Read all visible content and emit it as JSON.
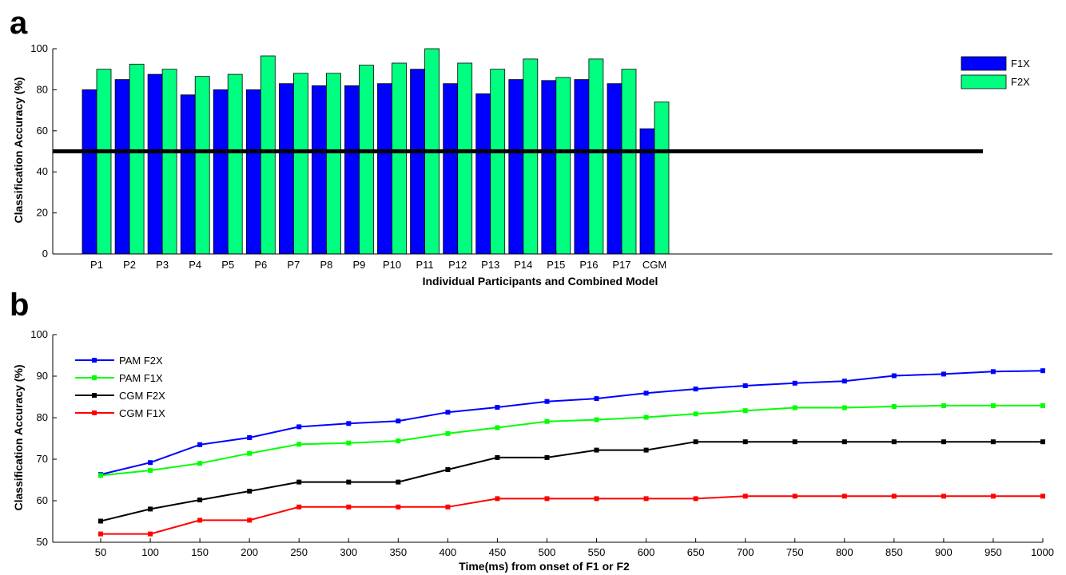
{
  "chart_data": [
    {
      "panel_label": "a",
      "type": "bar",
      "categories": [
        "P1",
        "P2",
        "P3",
        "P4",
        "P5",
        "P6",
        "P7",
        "P8",
        "P9",
        "P10",
        "P11",
        "P12",
        "P13",
        "P14",
        "P15",
        "P16",
        "P17",
        "CGM"
      ],
      "series": [
        {
          "name": "F1X",
          "color": "#0000ff",
          "values": [
            80,
            85,
            87.5,
            77.5,
            80,
            80,
            83,
            82,
            82,
            83,
            90,
            83,
            78,
            85,
            84.5,
            85,
            83,
            61
          ]
        },
        {
          "name": "F2X",
          "color": "#00ff80",
          "values": [
            90,
            92.5,
            90,
            86.5,
            87.5,
            96.5,
            88,
            88,
            92,
            93,
            100,
            93,
            90,
            95,
            86,
            95,
            90,
            74
          ]
        }
      ],
      "reference_line": 50,
      "xlabel": "Individual Participants and Combined Model",
      "ylabel": "Classification Accuracy (%)",
      "ylim": [
        0,
        100
      ],
      "yticks": [
        0,
        20,
        40,
        60,
        80,
        100
      ],
      "legend": "top-right",
      "grid": false
    },
    {
      "panel_label": "b",
      "type": "line",
      "x": [
        50,
        100,
        150,
        200,
        250,
        300,
        350,
        400,
        450,
        500,
        550,
        600,
        650,
        700,
        750,
        800,
        850,
        900,
        950,
        1000
      ],
      "series": [
        {
          "name": "PAM F2X",
          "color": "#0000ff",
          "values": [
            66.3,
            69.2,
            73.5,
            75.2,
            77.8,
            78.6,
            79.2,
            81.3,
            82.5,
            83.9,
            84.6,
            85.9,
            86.9,
            87.7,
            88.3,
            88.8,
            90.1,
            90.5,
            91.1,
            91.3
          ]
        },
        {
          "name": "PAM F1X",
          "color": "#00ff00",
          "values": [
            66.1,
            67.3,
            69.0,
            71.4,
            73.6,
            73.9,
            74.4,
            76.2,
            77.6,
            79.1,
            79.5,
            80.1,
            80.9,
            81.7,
            82.4,
            82.4,
            82.7,
            82.9,
            82.9,
            82.9
          ]
        },
        {
          "name": "CGM F2X",
          "color": "#000000",
          "values": [
            55.1,
            58.0,
            60.2,
            62.3,
            64.5,
            64.5,
            64.5,
            67.5,
            70.4,
            70.4,
            72.2,
            72.2,
            74.2,
            74.2,
            74.2,
            74.2,
            74.2,
            74.2,
            74.2,
            74.2
          ]
        },
        {
          "name": "CGM F1X",
          "color": "#ff0000",
          "values": [
            52.0,
            52.0,
            55.3,
            55.3,
            58.5,
            58.5,
            58.5,
            58.5,
            60.5,
            60.5,
            60.5,
            60.5,
            60.5,
            61.1,
            61.1,
            61.1,
            61.1,
            61.1,
            61.1,
            61.1
          ]
        }
      ],
      "xlabel": "Time(ms) from onset of F1 or F2",
      "ylabel": "Classification Accuracy (%)",
      "xlim": [
        50,
        1000
      ],
      "ylim": [
        50,
        100
      ],
      "yticks": [
        50,
        60,
        70,
        80,
        90,
        100
      ],
      "legend": "top-left",
      "grid": false
    }
  ]
}
